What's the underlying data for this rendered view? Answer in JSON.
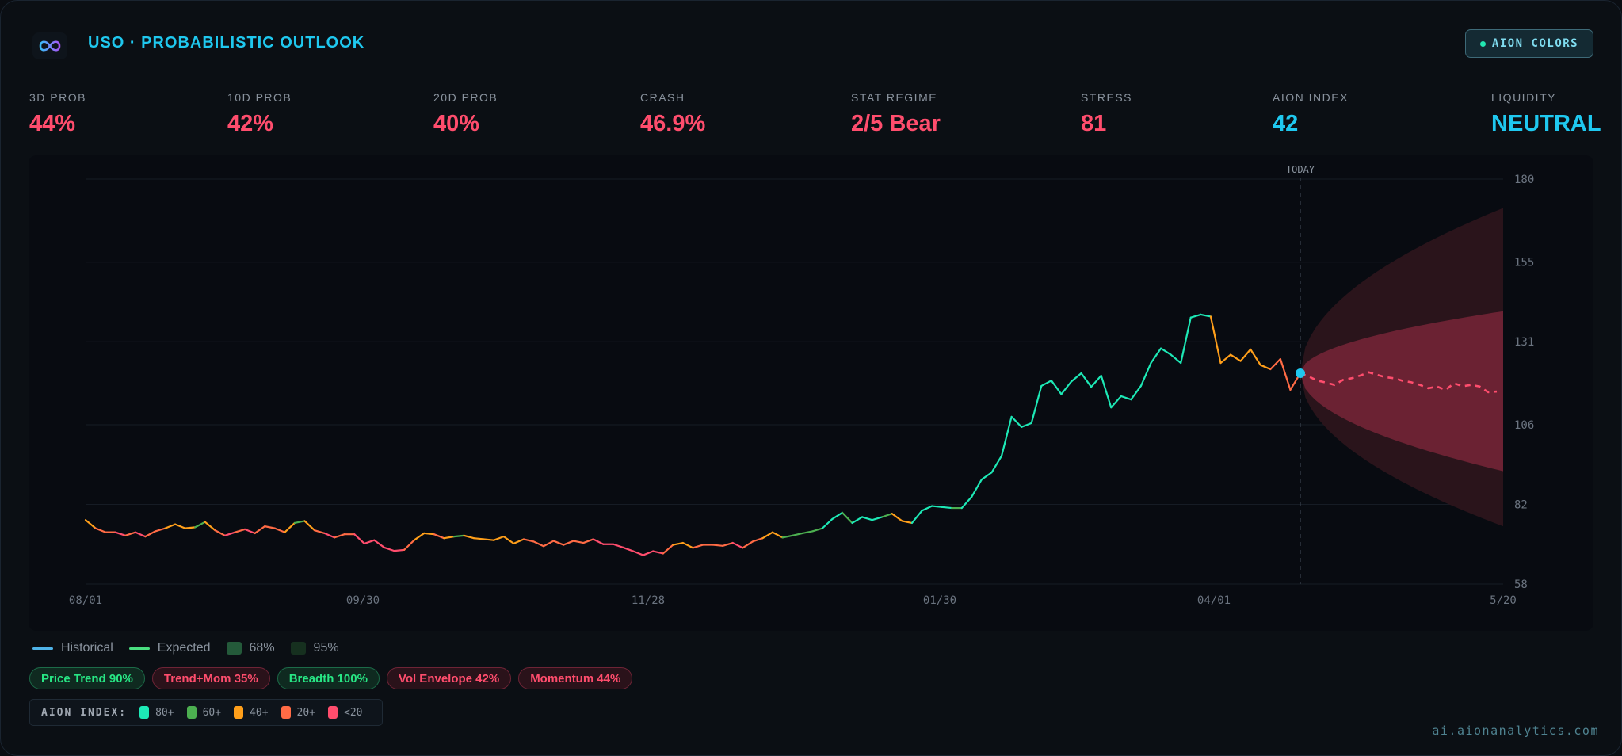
{
  "header": {
    "title": "USO · PROBABILISTIC OUTLOOK",
    "logo_icon": "infinity-icon",
    "aion_colors_button": "AION COLORS"
  },
  "stats": [
    {
      "label": "3D PROB",
      "value": "44%",
      "color": "#ff4d6d"
    },
    {
      "label": "10D PROB",
      "value": "42%",
      "color": "#ff4d6d"
    },
    {
      "label": "20D PROB",
      "value": "40%",
      "color": "#ff4d6d"
    },
    {
      "label": "CRASH",
      "value": "46.9%",
      "color": "#ff4d6d"
    },
    {
      "label": "STAT REGIME",
      "value": "2/5 Bear",
      "color": "#ff4d6d"
    },
    {
      "label": "STRESS",
      "value": "81",
      "color": "#ff4d6d"
    },
    {
      "label": "AION INDEX",
      "value": "42",
      "color": "#1fc8ef"
    },
    {
      "label": "LIQUIDITY",
      "value": "NEUTRAL",
      "color": "#1fc8ef"
    }
  ],
  "chart_data": {
    "type": "line",
    "today_label": "TODAY",
    "x_ticks": [
      "08/01",
      "09/30",
      "11/28",
      "01/30",
      "04/01",
      "5/20"
    ],
    "y_ticks": [
      180,
      155,
      131,
      106,
      82,
      58
    ],
    "ylim": [
      58,
      180
    ],
    "grid": true,
    "bucket_colors": {
      "t": "#1de9b6",
      "g": "#4caf50",
      "o": "#ff9f1a",
      "r": "#ff6b45",
      "p": "#ff4d6d"
    },
    "historical": [
      [
        77.3,
        "g"
      ],
      [
        74.8,
        "o"
      ],
      [
        73.6,
        "r"
      ],
      [
        73.6,
        "r"
      ],
      [
        72.6,
        "p"
      ],
      [
        73.6,
        "r"
      ],
      [
        72.3,
        "p"
      ],
      [
        73.9,
        "r"
      ],
      [
        74.8,
        "r"
      ],
      [
        76.0,
        "o"
      ],
      [
        74.8,
        "o"
      ],
      [
        75.1,
        "o"
      ],
      [
        76.7,
        "g"
      ],
      [
        74.2,
        "o"
      ],
      [
        72.6,
        "r"
      ],
      [
        73.6,
        "p"
      ],
      [
        74.5,
        "r"
      ],
      [
        73.3,
        "p"
      ],
      [
        75.4,
        "r"
      ],
      [
        74.8,
        "r"
      ],
      [
        73.6,
        "r"
      ],
      [
        76.4,
        "o"
      ],
      [
        77.0,
        "g"
      ],
      [
        74.2,
        "o"
      ],
      [
        73.3,
        "r"
      ],
      [
        72.0,
        "p"
      ],
      [
        73.0,
        "r"
      ],
      [
        73.0,
        "r"
      ],
      [
        70.2,
        "p"
      ],
      [
        71.2,
        "p"
      ],
      [
        69.0,
        "p"
      ],
      [
        68.0,
        "p"
      ],
      [
        68.3,
        "p"
      ],
      [
        71.2,
        "r"
      ],
      [
        73.3,
        "o"
      ],
      [
        73.0,
        "o"
      ],
      [
        71.8,
        "r"
      ],
      [
        72.3,
        "o"
      ],
      [
        72.6,
        "g"
      ],
      [
        71.8,
        "o"
      ],
      [
        71.5,
        "o"
      ],
      [
        71.2,
        "o"
      ],
      [
        72.3,
        "o"
      ],
      [
        70.2,
        "o"
      ],
      [
        71.5,
        "o"
      ],
      [
        70.8,
        "r"
      ],
      [
        69.4,
        "r"
      ],
      [
        71.0,
        "r"
      ],
      [
        69.8,
        "r"
      ],
      [
        71.0,
        "r"
      ],
      [
        70.4,
        "r"
      ],
      [
        71.5,
        "r"
      ],
      [
        70.0,
        "p"
      ],
      [
        70.0,
        "p"
      ],
      [
        69.0,
        "p"
      ],
      [
        67.9,
        "p"
      ],
      [
        66.7,
        "p"
      ],
      [
        67.9,
        "p"
      ],
      [
        67.2,
        "p"
      ],
      [
        69.8,
        "r"
      ],
      [
        70.4,
        "o"
      ],
      [
        68.9,
        "o"
      ],
      [
        69.8,
        "r"
      ],
      [
        69.8,
        "r"
      ],
      [
        69.5,
        "r"
      ],
      [
        70.4,
        "r"
      ],
      [
        68.9,
        "p"
      ],
      [
        70.8,
        "r"
      ],
      [
        71.8,
        "r"
      ],
      [
        73.6,
        "o"
      ],
      [
        72.0,
        "o"
      ],
      [
        72.6,
        "g"
      ],
      [
        73.3,
        "g"
      ],
      [
        73.9,
        "g"
      ],
      [
        74.8,
        "g"
      ],
      [
        77.6,
        "t"
      ],
      [
        79.5,
        "t"
      ],
      [
        76.4,
        "g"
      ],
      [
        78.2,
        "t"
      ],
      [
        77.3,
        "t"
      ],
      [
        78.2,
        "t"
      ],
      [
        79.2,
        "g"
      ],
      [
        77.0,
        "o"
      ],
      [
        76.4,
        "o"
      ],
      [
        80.1,
        "t"
      ],
      [
        81.5,
        "t"
      ],
      [
        81.2,
        "t"
      ],
      [
        80.9,
        "t"
      ],
      [
        80.9,
        "g"
      ],
      [
        84.3,
        "t"
      ],
      [
        89.5,
        "t"
      ],
      [
        91.6,
        "t"
      ],
      [
        96.6,
        "t"
      ],
      [
        108.4,
        "t"
      ],
      [
        105.3,
        "t"
      ],
      [
        106.5,
        "t"
      ],
      [
        117.7,
        "t"
      ],
      [
        119.3,
        "t"
      ],
      [
        115.2,
        "t"
      ],
      [
        119.0,
        "t"
      ],
      [
        121.5,
        "t"
      ],
      [
        117.4,
        "t"
      ],
      [
        120.8,
        "t"
      ],
      [
        111.2,
        "t"
      ],
      [
        114.6,
        "t"
      ],
      [
        113.6,
        "t"
      ],
      [
        117.7,
        "t"
      ],
      [
        124.6,
        "t"
      ],
      [
        129.0,
        "t"
      ],
      [
        127.1,
        "t"
      ],
      [
        124.6,
        "t"
      ],
      [
        138.3,
        "t"
      ],
      [
        139.2,
        "t"
      ],
      [
        138.6,
        "t"
      ],
      [
        124.6,
        "o"
      ],
      [
        127.1,
        "o"
      ],
      [
        125.2,
        "o"
      ],
      [
        128.7,
        "o"
      ],
      [
        124.0,
        "o"
      ],
      [
        122.7,
        "o"
      ],
      [
        125.8,
        "r"
      ],
      [
        116.5,
        "r"
      ],
      [
        121.5,
        "r"
      ]
    ],
    "expected": [
      121.5,
      120.5,
      119.3,
      118.7,
      118.0,
      119.5,
      120.0,
      120.8,
      121.8,
      121.0,
      120.3,
      120.0,
      119.2,
      118.8,
      118.0,
      117.0,
      117.5,
      116.5,
      118.5,
      117.6,
      118.0,
      117.5,
      115.8,
      116.0
    ],
    "expected_color": "#ff4d6d",
    "band_68_end": [
      92.0,
      140.2
    ],
    "band_95_end": [
      75.4,
      171.3
    ],
    "band_68_color": "#6b2233",
    "band_95_color": "#2a141b",
    "today_marker_color": "#1fc8ef"
  },
  "legend": {
    "items": [
      {
        "label": "Historical",
        "kind": "line",
        "color": "#4fb3e8"
      },
      {
        "label": "Expected",
        "kind": "line",
        "color": "#4ade80"
      },
      {
        "label": "68%",
        "kind": "box",
        "color": "#245a3a"
      },
      {
        "label": "95%",
        "kind": "box",
        "color": "#16301f"
      }
    ]
  },
  "signals": [
    {
      "label": "Price Trend 90%",
      "status": "up"
    },
    {
      "label": "Trend+Mom 35%",
      "status": "down"
    },
    {
      "label": "Breadth 100%",
      "status": "up"
    },
    {
      "label": "Vol Envelope 42%",
      "status": "down"
    },
    {
      "label": "Momentum 44%",
      "status": "down"
    }
  ],
  "aion_scale": {
    "title": "AION INDEX:",
    "levels": [
      {
        "label": "80+",
        "color": "#1de9b6"
      },
      {
        "label": "60+",
        "color": "#4caf50"
      },
      {
        "label": "40+",
        "color": "#ff9f1a"
      },
      {
        "label": "20+",
        "color": "#ff6b45"
      },
      {
        "label": "<20",
        "color": "#ff4d6d"
      }
    ]
  },
  "footer": {
    "url": "ai.aionanalytics.com"
  }
}
